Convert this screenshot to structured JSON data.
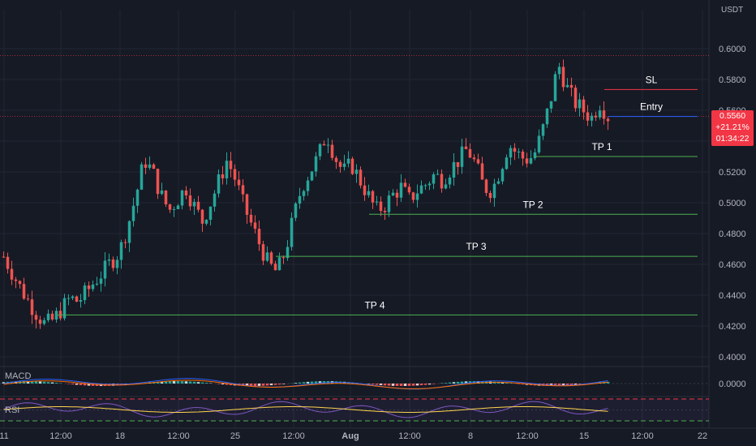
{
  "header": {
    "currency": "USDT"
  },
  "price_badge": {
    "price": "0.5560",
    "change": "+21.21%",
    "countdown": "01:34:22"
  },
  "indicators": {
    "macd_label": "MACD",
    "rsi_label": "RSI"
  },
  "colors": {
    "up": "#26a69a",
    "down": "#ef5350",
    "background": "#161a25",
    "tp_line": "#4caf50",
    "sl_line": "#f23645",
    "entry_line": "#2962ff",
    "macd": "#2962ff",
    "signal": "#ff6d00",
    "rsi": "#7e57c2",
    "rsi_ma": "#ffd54f"
  },
  "chart_data": {
    "type": "candlestick",
    "symbol_quote": "USDT",
    "y_ticks": [
      "0.6000",
      "0.5800",
      "0.5600",
      "0.5400",
      "0.5200",
      "0.5000",
      "0.4800",
      "0.4600",
      "0.4400",
      "0.4200",
      "0.4000"
    ],
    "ylim": [
      0.4,
      0.6
    ],
    "x_ticks": [
      "11",
      "12:00",
      "18",
      "12:00",
      "25",
      "12:00",
      "Aug",
      "12:00",
      "8",
      "12:00",
      "15",
      "12:00",
      "22"
    ],
    "last_price": 0.556,
    "close_path": [
      0.465,
      0.455,
      0.445,
      0.436,
      0.428,
      0.421,
      0.424,
      0.431,
      0.438,
      0.436,
      0.442,
      0.449,
      0.455,
      0.462,
      0.468,
      0.485,
      0.505,
      0.528,
      0.52,
      0.505,
      0.495,
      0.502,
      0.51,
      0.498,
      0.488,
      0.5,
      0.514,
      0.528,
      0.515,
      0.498,
      0.485,
      0.472,
      0.46,
      0.455,
      0.468,
      0.49,
      0.51,
      0.52,
      0.53,
      0.545,
      0.53,
      0.52,
      0.525,
      0.515,
      0.505,
      0.495,
      0.498,
      0.505,
      0.51,
      0.502,
      0.508,
      0.512,
      0.518,
      0.515,
      0.522,
      0.528,
      0.535,
      0.525,
      0.51,
      0.508,
      0.522,
      0.538,
      0.532,
      0.528,
      0.53,
      0.545,
      0.565,
      0.59,
      0.575,
      0.565,
      0.56,
      0.555,
      0.565,
      0.556
    ],
    "levels": [
      {
        "label": "SL",
        "price": 0.5735
      },
      {
        "label": "Entry",
        "price": 0.556
      },
      {
        "label": "TP 1",
        "price": 0.53
      },
      {
        "label": "TP 2",
        "price": 0.4925
      },
      {
        "label": "TP 3",
        "price": 0.4652
      },
      {
        "label": "TP 4",
        "price": 0.4272
      }
    ]
  }
}
